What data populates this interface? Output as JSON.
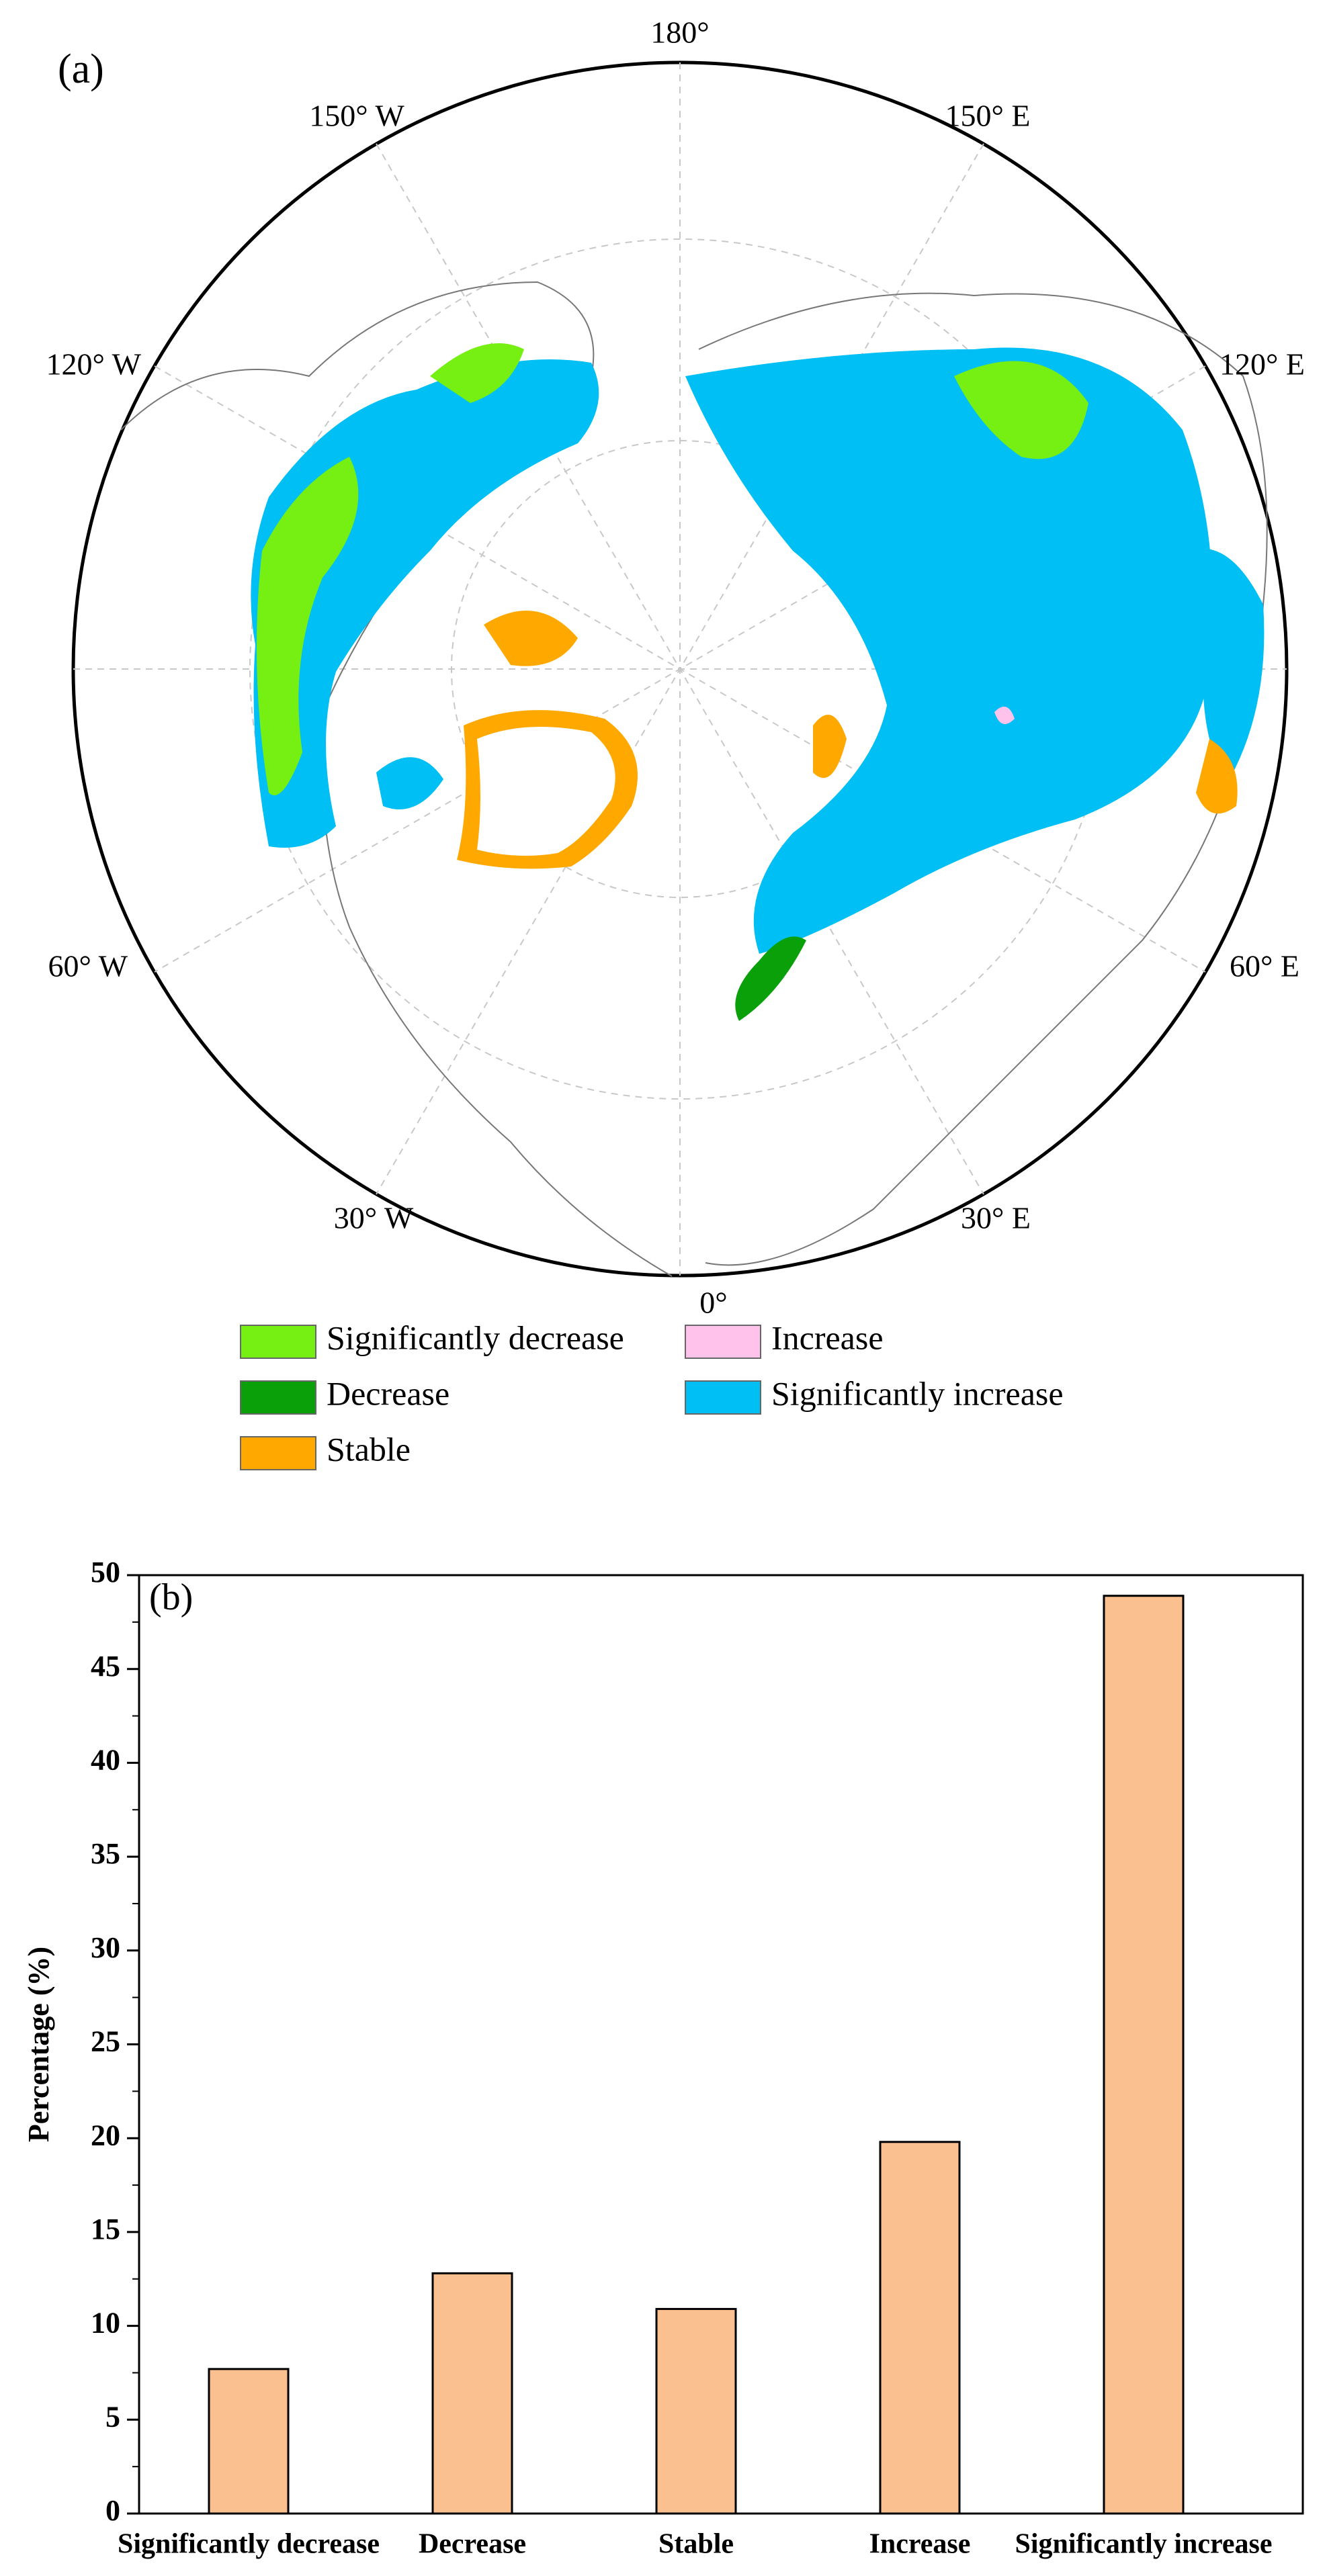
{
  "map": {
    "panel_label": "(a)",
    "longitude_labels": [
      "180°",
      "150° W",
      "150° E",
      "120° W",
      "120° E",
      "60° W",
      "60° E",
      "30° W",
      "30° E",
      "0°"
    ]
  },
  "legend": {
    "items": [
      {
        "label": "Significantly decrease",
        "color": "#76f012"
      },
      {
        "label": "Increase",
        "color": "#ffc2ea"
      },
      {
        "label": "Decrease",
        "color": "#0aa00a"
      },
      {
        "label": "Significantly increase",
        "color": "#00bff5"
      },
      {
        "label": "Stable",
        "color": "#ffa800"
      }
    ]
  },
  "chart_data": {
    "type": "bar",
    "panel_label": "(b)",
    "ylabel": "Percentage (%)",
    "categories": [
      "Significantly decrease",
      "Decrease",
      "Stable",
      "Increase",
      "Significantly increase"
    ],
    "values": [
      7.7,
      12.8,
      10.9,
      19.8,
      48.9
    ],
    "color": "#fbc08f",
    "ylim": [
      0,
      50
    ],
    "yticks": [
      0,
      5,
      10,
      15,
      20,
      25,
      30,
      35,
      40,
      45,
      50
    ]
  }
}
